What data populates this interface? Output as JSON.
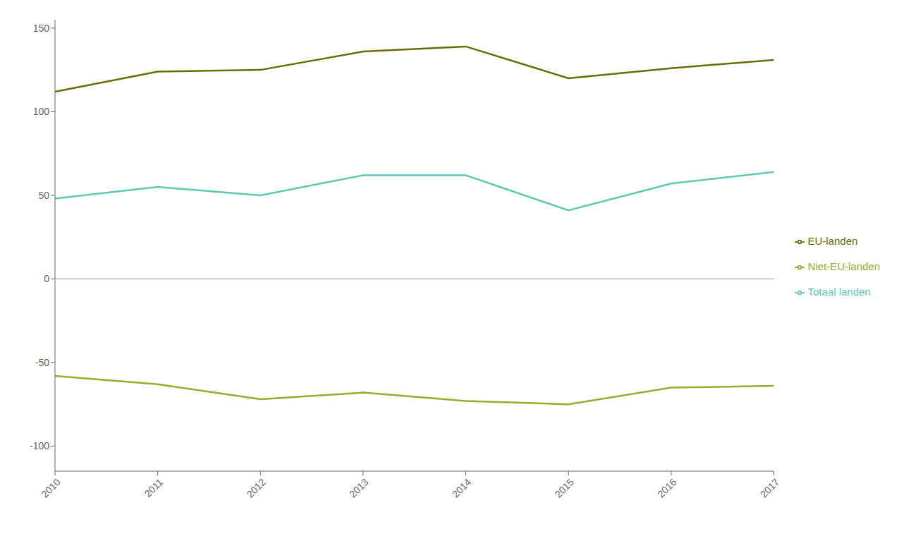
{
  "chart_data": {
    "type": "line",
    "x": [
      2010,
      2011,
      2012,
      2013,
      2014,
      2015,
      2016,
      2017
    ],
    "xlim": [
      2010,
      2017
    ],
    "xticks": [
      2010,
      2011,
      2012,
      2013,
      2014,
      2015,
      2016,
      2017
    ],
    "ylim": [
      -115,
      155
    ],
    "yticks": [
      -100,
      -50,
      0,
      50,
      100,
      150
    ],
    "grid": false,
    "legend": "right",
    "series": [
      {
        "name": "Totaal landen",
        "color": "#5EC8B4",
        "values": [
          48,
          55,
          50,
          62,
          62,
          41,
          57,
          64
        ]
      },
      {
        "name": "EU-landen",
        "color": "#6B6B00",
        "values": [
          112,
          124,
          125,
          136,
          139,
          120,
          126,
          131
        ]
      },
      {
        "name": "Niet-EU-landen",
        "color": "#8DB030",
        "values": [
          -58,
          -63,
          -72,
          -68,
          -73,
          -75,
          -65,
          -64
        ]
      }
    ]
  }
}
